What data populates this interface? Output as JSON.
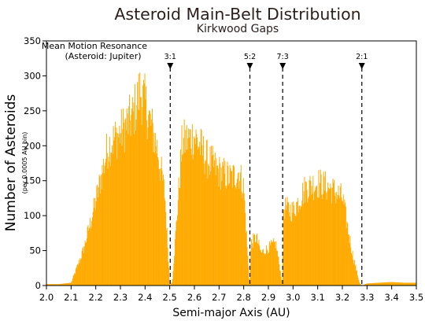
{
  "chart_data": {
    "type": "bar",
    "title": "Asteroid Main-Belt Distribution",
    "subtitle": "Kirkwood Gaps",
    "xlabel": "Semi-major Axis (AU)",
    "ylabel": "Number of Asteroids",
    "ylabel_sub": "(per 0.0005 AU bin)",
    "xlim": [
      2.0,
      3.5
    ],
    "ylim": [
      0,
      350
    ],
    "x_ticks": [
      "2.0",
      "2.1",
      "2.2",
      "2.3",
      "2.4",
      "2.5",
      "2.6",
      "2.7",
      "2.8",
      "2.9",
      "3.0",
      "3.1",
      "3.2",
      "3.3",
      "3.4",
      "3.5"
    ],
    "y_ticks": [
      "0",
      "50",
      "100",
      "150",
      "200",
      "250",
      "300",
      "350"
    ],
    "bar_color": "#ffaa00",
    "bin_width": 0.0005,
    "profile_points": [
      {
        "x": 2.0,
        "y": 2
      },
      {
        "x": 2.05,
        "y": 2
      },
      {
        "x": 2.1,
        "y": 4
      },
      {
        "x": 2.15,
        "y": 55
      },
      {
        "x": 2.2,
        "y": 130
      },
      {
        "x": 2.25,
        "y": 215
      },
      {
        "x": 2.3,
        "y": 235
      },
      {
        "x": 2.35,
        "y": 260
      },
      {
        "x": 2.38,
        "y": 300
      },
      {
        "x": 2.4,
        "y": 280
      },
      {
        "x": 2.45,
        "y": 210
      },
      {
        "x": 2.48,
        "y": 140
      },
      {
        "x": 2.5,
        "y": 0
      },
      {
        "x": 2.51,
        "y": 5
      },
      {
        "x": 2.55,
        "y": 220
      },
      {
        "x": 2.6,
        "y": 230
      },
      {
        "x": 2.65,
        "y": 195
      },
      {
        "x": 2.7,
        "y": 175
      },
      {
        "x": 2.75,
        "y": 165
      },
      {
        "x": 2.78,
        "y": 175
      },
      {
        "x": 2.8,
        "y": 150
      },
      {
        "x": 2.823,
        "y": 0
      },
      {
        "x": 2.83,
        "y": 65
      },
      {
        "x": 2.85,
        "y": 75
      },
      {
        "x": 2.87,
        "y": 50
      },
      {
        "x": 2.9,
        "y": 58
      },
      {
        "x": 2.93,
        "y": 65
      },
      {
        "x": 2.958,
        "y": 0
      },
      {
        "x": 2.96,
        "y": 120
      },
      {
        "x": 3.0,
        "y": 115
      },
      {
        "x": 3.05,
        "y": 150
      },
      {
        "x": 3.1,
        "y": 158
      },
      {
        "x": 3.15,
        "y": 150
      },
      {
        "x": 3.2,
        "y": 135
      },
      {
        "x": 3.24,
        "y": 50
      },
      {
        "x": 3.27,
        "y": 3
      },
      {
        "x": 3.28,
        "y": 0
      },
      {
        "x": 3.3,
        "y": 3
      },
      {
        "x": 3.35,
        "y": 4
      },
      {
        "x": 3.4,
        "y": 5
      },
      {
        "x": 3.45,
        "y": 4
      },
      {
        "x": 3.5,
        "y": 4
      }
    ],
    "resonances": [
      {
        "label": "3:1",
        "x": 2.502
      },
      {
        "label": "5:2",
        "x": 2.825
      },
      {
        "label": "7:3",
        "x": 2.958
      },
      {
        "label": "2:1",
        "x": 3.279
      }
    ],
    "legend": {
      "line1": "Mean Motion Resonance",
      "line2": "(Asteroid: Jupiter)",
      "placement": "top-left"
    },
    "grid": false
  }
}
